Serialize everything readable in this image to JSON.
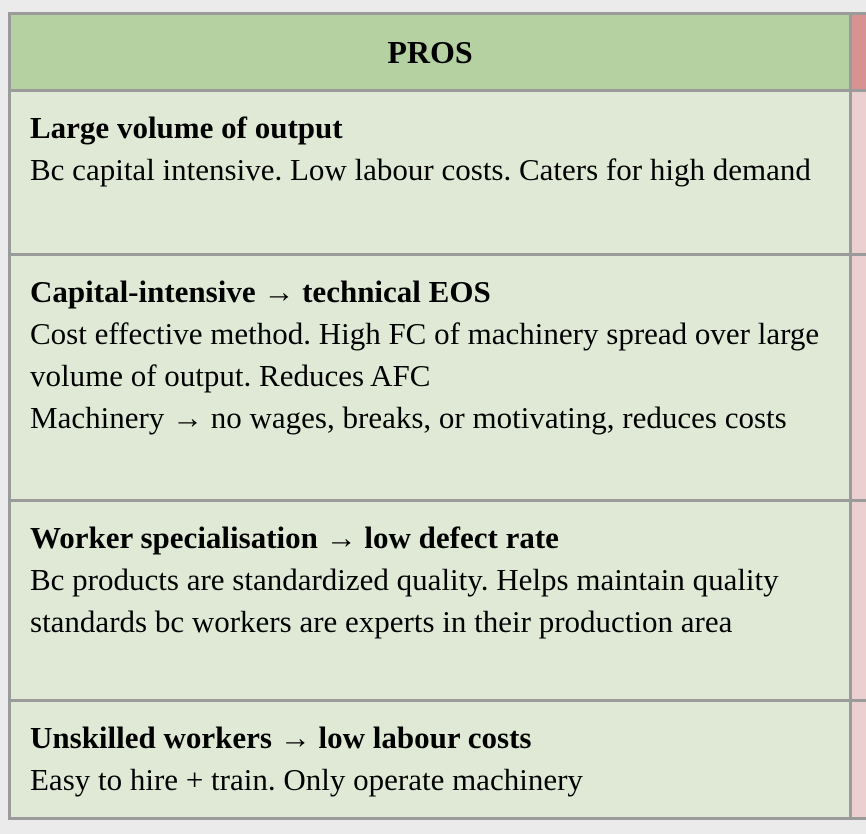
{
  "table": {
    "header": "PROS",
    "rows": [
      {
        "title": "Large volume of output",
        "paragraphs": [
          "Bc capital intensive. Low labour costs. Caters for high demand"
        ]
      },
      {
        "title": "Capital-intensive → technical EOS",
        "paragraphs": [
          "Cost effective method. High FC of machinery spread over large volume of output. Reduces AFC",
          "Machinery → no wages, breaks, or motivating, reduces costs"
        ]
      },
      {
        "title": "Worker specialisation → low defect rate",
        "paragraphs": [
          "Bc products are standardized quality. Helps maintain quality standards bc workers are experts in their production area"
        ]
      },
      {
        "title": "Unskilled workers → low labour costs",
        "paragraphs": [
          "Easy to hire + train. Only operate machinery"
        ]
      }
    ]
  },
  "colors": {
    "page_bg": "#ebebeb",
    "header_green": "#b5d1a1",
    "cell_green": "#dfe9d6",
    "header_red": "#d79292",
    "cell_pink": "#eccfcf",
    "border": "#9b9b9b",
    "text": "#000000"
  }
}
